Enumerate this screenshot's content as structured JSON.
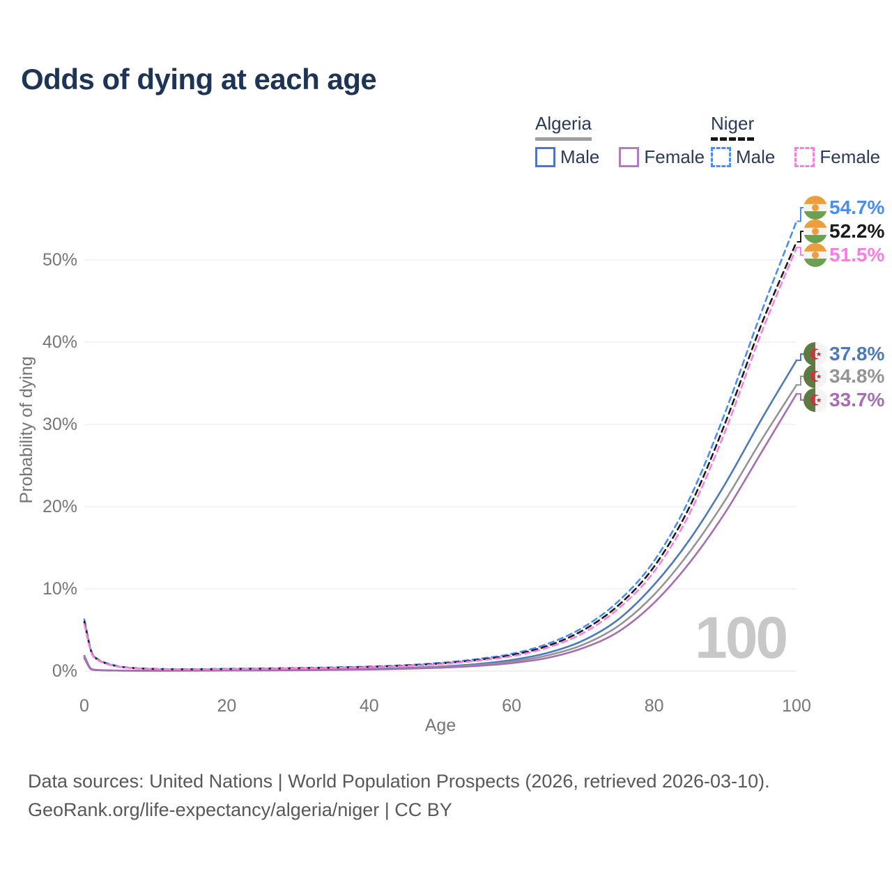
{
  "title": "Odds of dying at each age",
  "legend": {
    "groups": [
      {
        "country": "Algeria",
        "line_style": "solid",
        "underline_color": "#9e9e9e",
        "items": [
          {
            "label": "Male",
            "color": "#4c79b9"
          },
          {
            "label": "Female",
            "color": "#a76db3"
          }
        ]
      },
      {
        "country": "Niger",
        "line_style": "dashed",
        "underline_color": "#161616",
        "items": [
          {
            "label": "Male",
            "color": "#4a8cf2"
          },
          {
            "label": "Female",
            "color": "#fc7de2"
          }
        ]
      }
    ]
  },
  "chart_data": {
    "type": "line",
    "title": "Odds of dying at each age",
    "xlabel": "Age",
    "ylabel": "Probability of dying",
    "xlim": [
      0,
      100
    ],
    "ylim_percent": [
      0,
      55
    ],
    "x_ticks": [
      "0",
      "20",
      "40",
      "60",
      "80",
      "100"
    ],
    "x_tick_values": [
      0,
      20,
      40,
      60,
      80,
      100
    ],
    "y_ticks": [
      "0%",
      "10%",
      "20%",
      "30%",
      "40%",
      "50%"
    ],
    "y_tick_values": [
      0,
      10,
      20,
      30,
      40,
      50
    ],
    "grid": "horizontal",
    "hover_age_watermark": "100",
    "x": [
      0,
      1,
      2,
      3,
      4,
      5,
      10,
      15,
      20,
      25,
      30,
      35,
      40,
      45,
      50,
      55,
      60,
      65,
      70,
      75,
      80,
      85,
      90,
      95,
      100
    ],
    "series": [
      {
        "name": "Algeria Male",
        "country": "Algeria",
        "sex": "male",
        "color": "#4c79b9",
        "dash": false,
        "flag": "DZA",
        "end_label": "37.8%",
        "values": [
          1.85,
          0.25,
          0.13,
          0.1,
          0.08,
          0.07,
          0.05,
          0.08,
          0.11,
          0.14,
          0.16,
          0.2,
          0.27,
          0.38,
          0.56,
          0.85,
          1.35,
          2.2,
          3.7,
          6.3,
          10.5,
          16.0,
          22.8,
          30.5,
          37.8
        ]
      },
      {
        "name": "Algeria",
        "country": "Algeria",
        "sex": "both",
        "color": "#949494",
        "dash": false,
        "flag": "DZA",
        "end_label": "34.8%",
        "values": [
          1.7,
          0.22,
          0.12,
          0.09,
          0.07,
          0.06,
          0.05,
          0.07,
          0.09,
          0.11,
          0.13,
          0.17,
          0.23,
          0.33,
          0.48,
          0.73,
          1.15,
          1.9,
          3.2,
          5.5,
          9.3,
          14.5,
          20.8,
          28.0,
          34.8
        ]
      },
      {
        "name": "Algeria Female",
        "country": "Algeria",
        "sex": "female",
        "color": "#a76db3",
        "dash": false,
        "flag": "DZA",
        "end_label": "33.7%",
        "values": [
          1.55,
          0.2,
          0.11,
          0.08,
          0.07,
          0.06,
          0.04,
          0.05,
          0.07,
          0.08,
          0.1,
          0.14,
          0.19,
          0.28,
          0.41,
          0.62,
          0.97,
          1.6,
          2.8,
          4.8,
          8.3,
          13.2,
          19.3,
          26.5,
          33.7
        ]
      },
      {
        "name": "Niger Male",
        "country": "Niger",
        "sex": "male",
        "color": "#4a8cf2",
        "dash": true,
        "flag": "NER",
        "end_label": "54.7%",
        "values": [
          6.3,
          2.4,
          1.4,
          1.0,
          0.75,
          0.55,
          0.28,
          0.24,
          0.28,
          0.33,
          0.38,
          0.45,
          0.55,
          0.72,
          1.0,
          1.45,
          2.1,
          3.3,
          5.3,
          8.5,
          13.4,
          21.0,
          31.5,
          43.5,
          54.7
        ]
      },
      {
        "name": "Niger",
        "country": "Niger",
        "sex": "both",
        "color": "#1a1a1a",
        "dash": true,
        "flag": "NER",
        "end_label": "52.2%",
        "values": [
          6.0,
          2.3,
          1.35,
          0.95,
          0.7,
          0.52,
          0.26,
          0.22,
          0.26,
          0.3,
          0.35,
          0.42,
          0.51,
          0.66,
          0.92,
          1.33,
          1.95,
          3.05,
          4.95,
          8.0,
          12.7,
          20.0,
          30.2,
          42.0,
          52.2
        ]
      },
      {
        "name": "Niger Female",
        "country": "Niger",
        "sex": "female",
        "color": "#fc7de2",
        "dash": true,
        "flag": "NER",
        "end_label": "51.5%",
        "values": [
          5.7,
          2.2,
          1.3,
          0.9,
          0.67,
          0.5,
          0.25,
          0.21,
          0.24,
          0.28,
          0.32,
          0.39,
          0.47,
          0.61,
          0.85,
          1.25,
          1.8,
          2.85,
          4.6,
          7.6,
          12.1,
          19.2,
          29.2,
          41.0,
          51.5
        ]
      }
    ],
    "flag_colors": {
      "NER": {
        "orange": "#ee9d3e",
        "white": "#f4f4f4",
        "green": "#6aa04f"
      },
      "DZA": {
        "green": "#5d7b40",
        "white": "#f4f4f4",
        "red": "#cf3044"
      }
    },
    "grid_color": "#ececec",
    "axis_text_color": "#767676",
    "watermark_color": "#c8c8c8"
  },
  "footer": {
    "line1": "Data sources: United Nations | World Population Prospects (2026, retrieved 2026-03-10).",
    "line2": "GeoRank.org/life-expectancy/algeria/niger | CC BY"
  }
}
